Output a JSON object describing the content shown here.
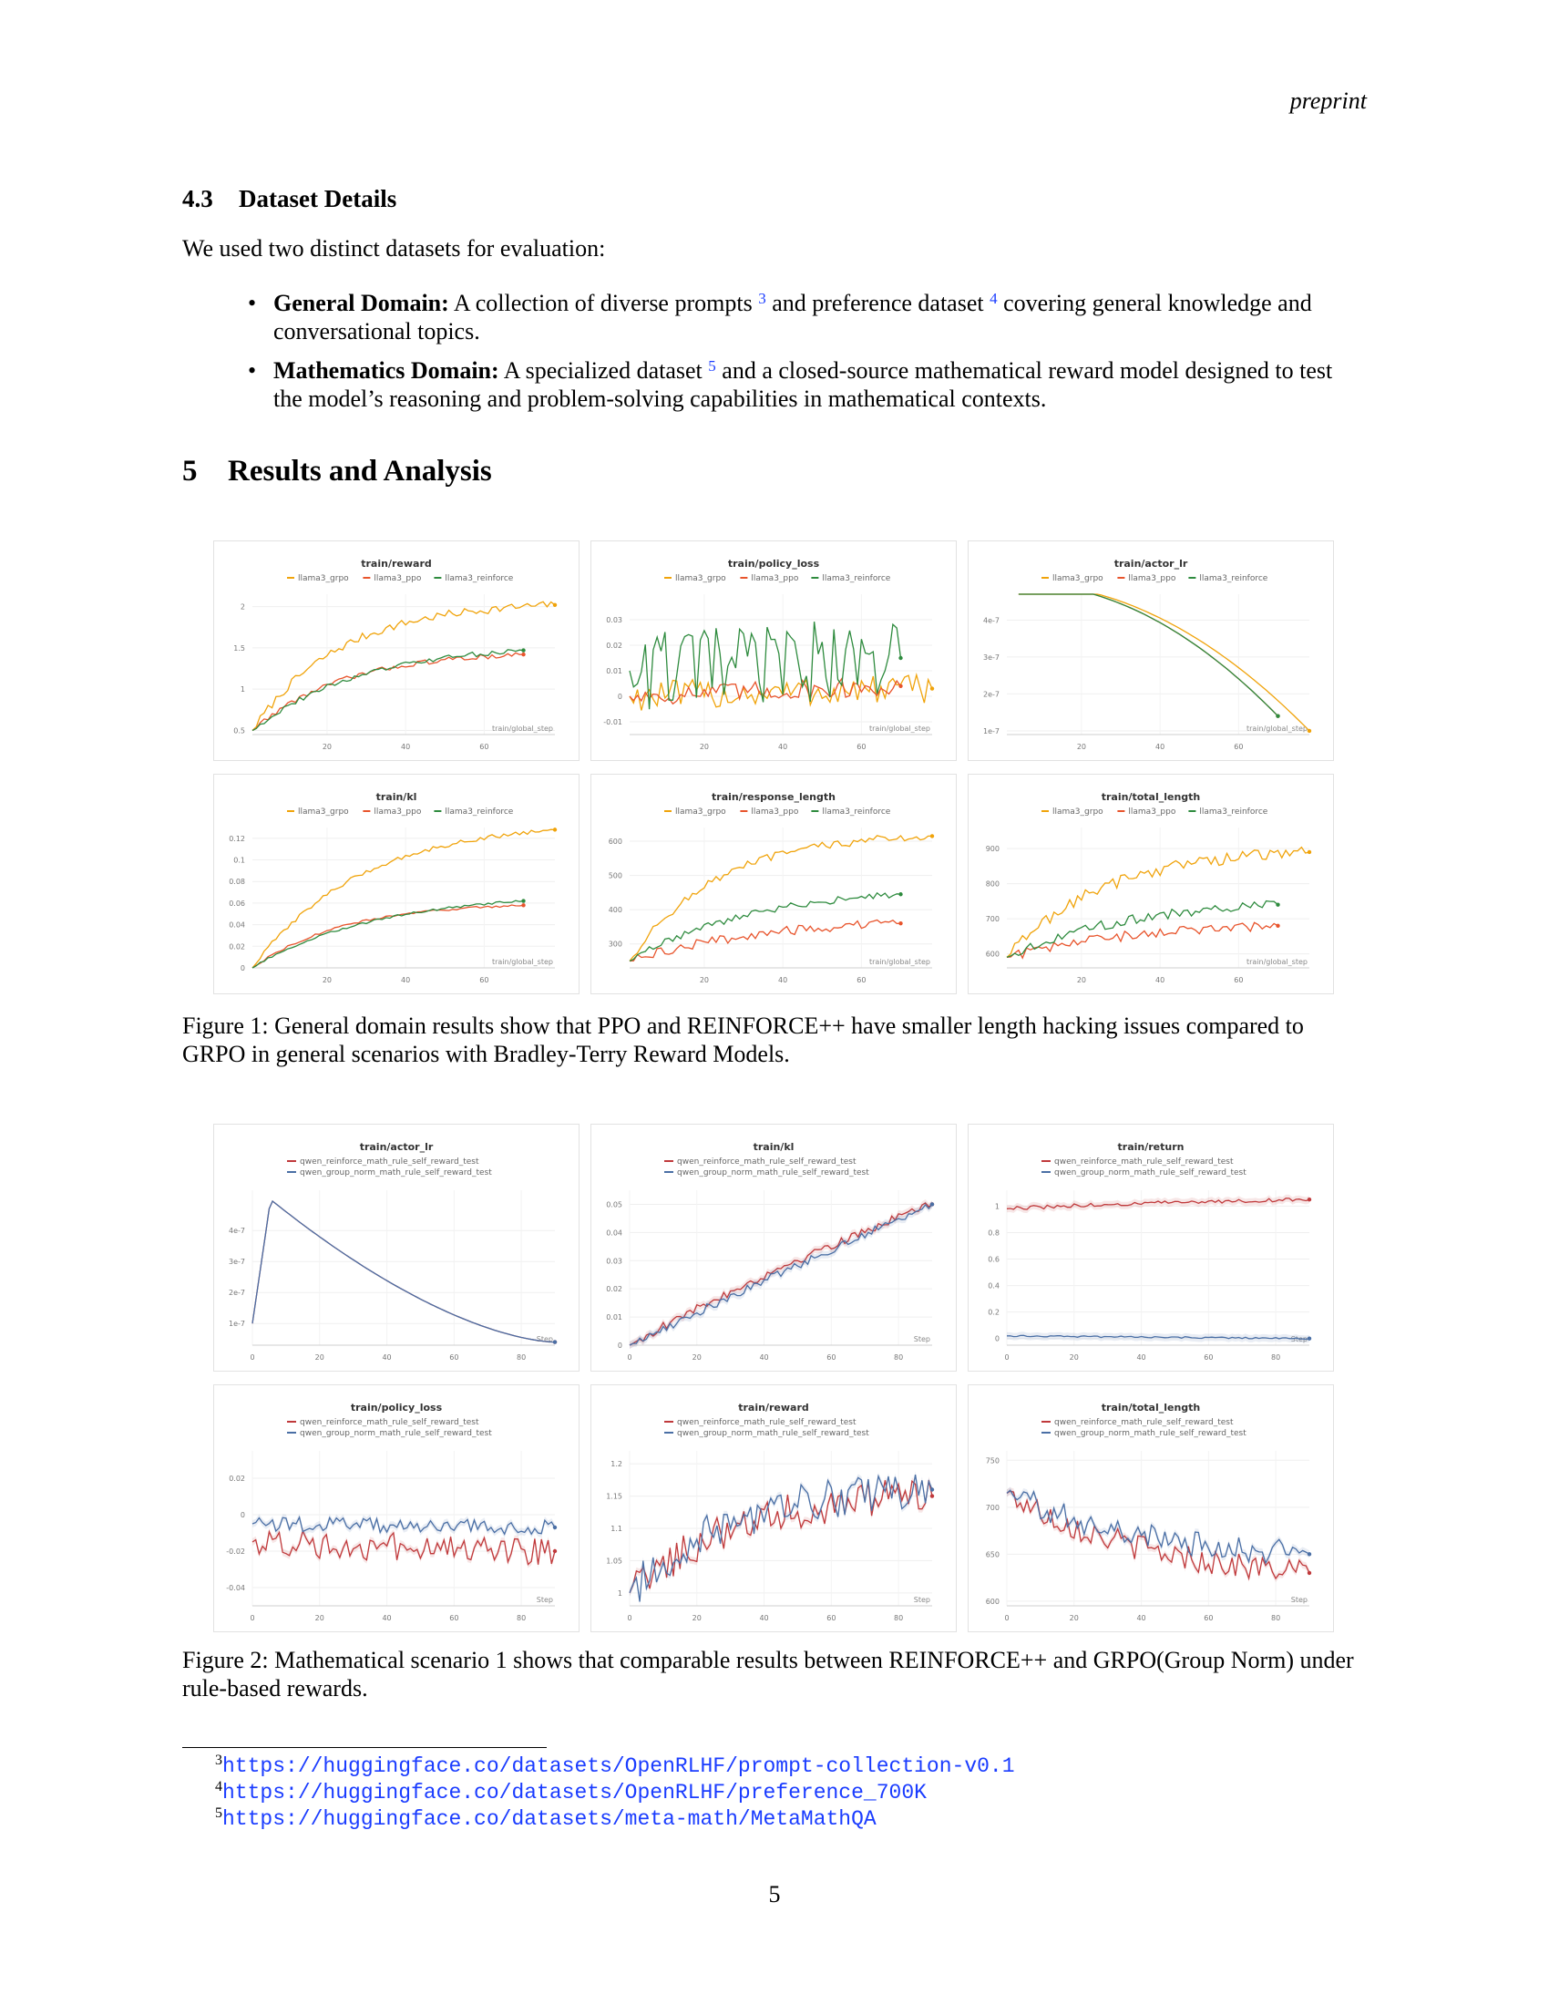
{
  "header": {
    "running_title": "preprint"
  },
  "subsection": {
    "number": "4.3",
    "title": "Dataset Details"
  },
  "intro": "We used two distinct datasets for evaluation:",
  "bullets": [
    {
      "term": "General Domain:",
      "text_a": " A collection of diverse prompts ",
      "fn_a": "3",
      "text_b": " and preference dataset ",
      "fn_b": "4",
      "text_c": " covering general knowledge and conversational topics."
    },
    {
      "term": "Mathematics Domain:",
      "text_a": " A specialized dataset ",
      "fn_a": "5",
      "text_b": " and a closed-source mathematical reward model designed to test the model’s reasoning and problem-solving capabilities in mathematical contexts."
    }
  ],
  "section": {
    "number": "5",
    "title": "Results and Analysis"
  },
  "figure1": {
    "caption": "Figure 1: General domain results show that PPO and REINFORCE++ have smaller length hacking issues compared to GRPO in general scenarios with Bradley-Terry Reward Models.",
    "xlabel": "train/global_step",
    "series_names": [
      "llama3_grpo",
      "llama3_ppo",
      "llama3_reinforce"
    ],
    "colors": [
      "#f0a30a",
      "#e8542c",
      "#2e8b3e"
    ]
  },
  "figure2": {
    "caption": "Figure 2: Mathematical scenario 1 shows that comparable results between REINFORCE++ and GRPO(Group Norm) under rule-based rewards.",
    "xlabel": "Step",
    "series_names": [
      "qwen_reinforce_math_rule_self_reward_test",
      "qwen_group_norm_math_rule_self_reward_test"
    ],
    "colors": [
      "#c0393b",
      "#4a6fa5"
    ]
  },
  "chart_data": [
    {
      "id": "f1c1",
      "type": "line",
      "title": "train/reward",
      "xlabel": "train/global_step",
      "xlim": [
        1,
        78
      ],
      "ylim": [
        0.45,
        2.15
      ],
      "xticks": [
        "20",
        "40",
        "60"
      ],
      "yticks": [
        "0.5",
        "1",
        "1.5",
        "2"
      ],
      "series": [
        {
          "name": "llama3_grpo",
          "start": [
            1,
            0.5
          ],
          "end": [
            78,
            2.02
          ],
          "k": 3.5,
          "noise": 0.05
        },
        {
          "name": "llama3_ppo",
          "start": [
            1,
            0.5
          ],
          "end": [
            70,
            1.42
          ],
          "k": 3.0,
          "noise": 0.03
        },
        {
          "name": "llama3_reinforce",
          "start": [
            1,
            0.5
          ],
          "end": [
            70,
            1.47
          ],
          "k": 2.5,
          "noise": 0.03
        }
      ]
    },
    {
      "id": "f1c2",
      "type": "line",
      "title": "train/policy_loss",
      "xlabel": "train/global_step",
      "xlim": [
        1,
        78
      ],
      "ylim": [
        -0.015,
        0.04
      ],
      "xticks": [
        "20",
        "40",
        "60"
      ],
      "yticks": [
        "-0.01",
        "0",
        "0.01",
        "0.02",
        "0.03"
      ],
      "series": [
        {
          "name": "llama3_grpo",
          "start": [
            1,
            0.0
          ],
          "end": [
            78,
            0.003
          ],
          "k": 0,
          "noise": 0.006
        },
        {
          "name": "llama3_ppo",
          "start": [
            1,
            0.0
          ],
          "end": [
            70,
            0.004
          ],
          "k": 0,
          "noise": 0.004
        },
        {
          "name": "llama3_reinforce",
          "start": [
            1,
            0.01
          ],
          "end": [
            70,
            0.015
          ],
          "k": 0,
          "noise": 0.016
        }
      ]
    },
    {
      "id": "f1c3",
      "type": "line",
      "title": "train/actor_lr",
      "xlabel": "train/global_step",
      "xlim": [
        1,
        78
      ],
      "ylim": [
        9e-08,
        4.7e-07
      ],
      "xticks": [
        "20",
        "40",
        "60"
      ],
      "yticks": [
        "1e-7",
        "2e-7",
        "3e-7",
        "4e-7"
      ],
      "series": [
        {
          "name": "llama3_grpo",
          "start": [
            4,
            5e-07
          ],
          "end": [
            78,
            1e-07
          ],
          "k": -1,
          "noise": 0
        },
        {
          "name": "llama3_ppo",
          "start": [
            4,
            5e-07
          ],
          "end": [
            70,
            1.4e-07
          ],
          "k": -1,
          "noise": 0
        },
        {
          "name": "llama3_reinforce",
          "start": [
            4,
            5e-07
          ],
          "end": [
            70,
            1.4e-07
          ],
          "k": -1,
          "noise": 0
        }
      ]
    },
    {
      "id": "f1c4",
      "type": "line",
      "title": "train/kl",
      "xlabel": "train/global_step",
      "xlim": [
        1,
        78
      ],
      "ylim": [
        0,
        0.13
      ],
      "xticks": [
        "20",
        "40",
        "60"
      ],
      "yticks": [
        "0",
        "0.02",
        "0.04",
        "0.06",
        "0.08",
        "0.1",
        "0.12"
      ],
      "series": [
        {
          "name": "llama3_grpo",
          "start": [
            1,
            0.0
          ],
          "end": [
            78,
            0.128
          ],
          "k": 2.8,
          "noise": 0.002
        },
        {
          "name": "llama3_ppo",
          "start": [
            1,
            0.0
          ],
          "end": [
            70,
            0.058
          ],
          "k": 3.0,
          "noise": 0.001
        },
        {
          "name": "llama3_reinforce",
          "start": [
            1,
            0.0
          ],
          "end": [
            70,
            0.062
          ],
          "k": 2.2,
          "noise": 0.001
        }
      ]
    },
    {
      "id": "f1c5",
      "type": "line",
      "title": "train/response_length",
      "xlabel": "train/global_step",
      "xlim": [
        1,
        78
      ],
      "ylim": [
        230,
        640
      ],
      "xticks": [
        "20",
        "40",
        "60"
      ],
      "yticks": [
        "300",
        "400",
        "500",
        "600"
      ],
      "series": [
        {
          "name": "llama3_grpo",
          "start": [
            1,
            250
          ],
          "end": [
            78,
            615
          ],
          "k": 3.5,
          "noise": 12
        },
        {
          "name": "llama3_ppo",
          "start": [
            1,
            250
          ],
          "end": [
            70,
            360
          ],
          "k": 2.0,
          "noise": 14
        },
        {
          "name": "llama3_reinforce",
          "start": [
            1,
            250
          ],
          "end": [
            70,
            445
          ],
          "k": 2.2,
          "noise": 10
        }
      ]
    },
    {
      "id": "f1c6",
      "type": "line",
      "title": "train/total_length",
      "xlabel": "train/global_step",
      "xlim": [
        1,
        78
      ],
      "ylim": [
        560,
        960
      ],
      "xticks": [
        "20",
        "40",
        "60"
      ],
      "yticks": [
        "600",
        "700",
        "800",
        "900"
      ],
      "series": [
        {
          "name": "llama3_grpo",
          "start": [
            1,
            590
          ],
          "end": [
            78,
            890
          ],
          "k": 3.2,
          "noise": 18
        },
        {
          "name": "llama3_ppo",
          "start": [
            1,
            590
          ],
          "end": [
            70,
            680
          ],
          "k": 2.0,
          "noise": 14
        },
        {
          "name": "llama3_reinforce",
          "start": [
            1,
            590
          ],
          "end": [
            70,
            740
          ],
          "k": 2.2,
          "noise": 14
        }
      ]
    },
    {
      "id": "f2c1",
      "type": "line",
      "title": "train/actor_lr",
      "xlabel": "Step",
      "xlim": [
        0,
        90
      ],
      "ylim": [
        3e-08,
        5.3e-07
      ],
      "xticks": [
        "0",
        "20",
        "40",
        "60",
        "80"
      ],
      "yticks": [
        "1e-7",
        "2e-7",
        "3e-7",
        "4e-7"
      ],
      "series": [
        {
          "name": "qwen_reinforce_math_rule_self_reward_test",
          "start": [
            0,
            1e-07
          ],
          "end": [
            90,
            4e-08
          ],
          "k": -2,
          "noise": 0
        },
        {
          "name": "qwen_group_norm_math_rule_self_reward_test",
          "start": [
            0,
            1e-07
          ],
          "end": [
            90,
            4e-08
          ],
          "k": -2,
          "noise": 0
        }
      ]
    },
    {
      "id": "f2c2",
      "type": "line",
      "title": "train/kl",
      "xlabel": "Step",
      "xlim": [
        0,
        90
      ],
      "ylim": [
        0,
        0.055
      ],
      "xticks": [
        "0",
        "20",
        "40",
        "60",
        "80"
      ],
      "yticks": [
        "0",
        "0.01",
        "0.02",
        "0.03",
        "0.04",
        "0.05"
      ],
      "series": [
        {
          "name": "qwen_reinforce_math_rule_self_reward_test",
          "start": [
            0,
            0.0
          ],
          "end": [
            90,
            0.05
          ],
          "k": 0.4,
          "noise": 0.0015
        },
        {
          "name": "qwen_group_norm_math_rule_self_reward_test",
          "start": [
            0,
            0.0
          ],
          "end": [
            90,
            0.05
          ],
          "k": 0.1,
          "noise": 0.0015
        }
      ]
    },
    {
      "id": "f2c3",
      "type": "line",
      "title": "train/return",
      "xlabel": "Step",
      "xlim": [
        0,
        90
      ],
      "ylim": [
        -0.05,
        1.12
      ],
      "xticks": [
        "0",
        "20",
        "40",
        "60",
        "80"
      ],
      "yticks": [
        "0",
        "0.2",
        "0.4",
        "0.6",
        "0.8",
        "1"
      ],
      "series": [
        {
          "name": "qwen_reinforce_math_rule_self_reward_test",
          "start": [
            0,
            0.98
          ],
          "end": [
            90,
            1.05
          ],
          "k": 1.0,
          "noise": 0.015
        },
        {
          "name": "qwen_group_norm_math_rule_self_reward_test",
          "start": [
            0,
            0.02
          ],
          "end": [
            90,
            0.0
          ],
          "k": 0,
          "noise": 0.006
        }
      ]
    },
    {
      "id": "f2c4",
      "type": "line",
      "title": "train/policy_loss",
      "xlabel": "Step",
      "xlim": [
        0,
        90
      ],
      "ylim": [
        -0.05,
        0.035
      ],
      "xticks": [
        "0",
        "20",
        "40",
        "60",
        "80"
      ],
      "yticks": [
        "-0.04",
        "-0.02",
        "0",
        "0.02"
      ],
      "series": [
        {
          "name": "qwen_reinforce_math_rule_self_reward_test",
          "start": [
            0,
            -0.015
          ],
          "end": [
            90,
            -0.02
          ],
          "k": 0,
          "noise": 0.008
        },
        {
          "name": "qwen_group_norm_math_rule_self_reward_test",
          "start": [
            0,
            -0.005
          ],
          "end": [
            90,
            -0.007
          ],
          "k": 0,
          "noise": 0.004
        }
      ]
    },
    {
      "id": "f2c5",
      "type": "line",
      "title": "train/reward",
      "xlabel": "Step",
      "xlim": [
        0,
        90
      ],
      "ylim": [
        0.98,
        1.22
      ],
      "xticks": [
        "0",
        "20",
        "40",
        "60",
        "80"
      ],
      "yticks": [
        "1",
        "1.05",
        "1.1",
        "1.15",
        "1.2"
      ],
      "series": [
        {
          "name": "qwen_reinforce_math_rule_self_reward_test",
          "start": [
            0,
            1.0
          ],
          "end": [
            90,
            1.15
          ],
          "k": 3.0,
          "noise": 0.03
        },
        {
          "name": "qwen_group_norm_math_rule_self_reward_test",
          "start": [
            0,
            1.0
          ],
          "end": [
            90,
            1.16
          ],
          "k": 3.0,
          "noise": 0.03
        }
      ]
    },
    {
      "id": "f2c6",
      "type": "line",
      "title": "train/total_length",
      "xlabel": "Step",
      "xlim": [
        0,
        90
      ],
      "ylim": [
        595,
        760
      ],
      "xticks": [
        "0",
        "20",
        "40",
        "60",
        "80"
      ],
      "yticks": [
        "600",
        "650",
        "700",
        "750"
      ],
      "series": [
        {
          "name": "qwen_reinforce_math_rule_self_reward_test",
          "start": [
            0,
            715
          ],
          "end": [
            90,
            630
          ],
          "k": 2.0,
          "noise": 14
        },
        {
          "name": "qwen_group_norm_math_rule_self_reward_test",
          "start": [
            0,
            715
          ],
          "end": [
            90,
            650
          ],
          "k": 2.0,
          "noise": 14
        }
      ]
    }
  ],
  "footnotes": [
    {
      "mark": "3",
      "url": "https://huggingface.co/datasets/OpenRLHF/prompt-collection-v0.1"
    },
    {
      "mark": "4",
      "url": "https://huggingface.co/datasets/OpenRLHF/preference_700K"
    },
    {
      "mark": "5",
      "url": "https://huggingface.co/datasets/meta-math/MetaMathQA"
    }
  ],
  "page_number": "5"
}
